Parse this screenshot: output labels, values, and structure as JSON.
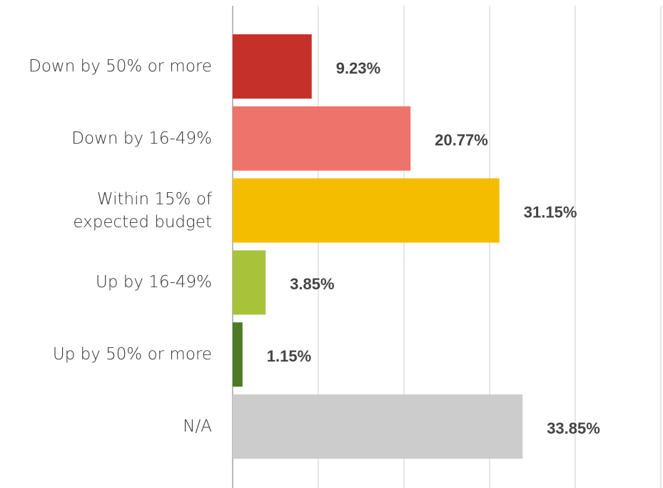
{
  "chart_data": {
    "type": "bar",
    "orientation": "horizontal",
    "categories": [
      "Down by 50% or more",
      "Down by 16-49%",
      "Within 15% of expected budget",
      "Up by 16-49%",
      "Up by 50% or more",
      "N/A"
    ],
    "values": [
      9.23,
      20.77,
      31.15,
      3.85,
      1.15,
      33.85
    ],
    "value_labels": [
      "9.23%",
      "20.77%",
      "31.15%",
      "3.85%",
      "1.15%",
      "33.85%"
    ],
    "colors": [
      "#c5302a",
      "#ee736b",
      "#f5bd00",
      "#a8c23a",
      "#4e7a27",
      "#cccccc"
    ],
    "xlim": [
      0,
      50
    ],
    "xticks": [
      0,
      10,
      20,
      30,
      40,
      50
    ],
    "grid": true
  }
}
